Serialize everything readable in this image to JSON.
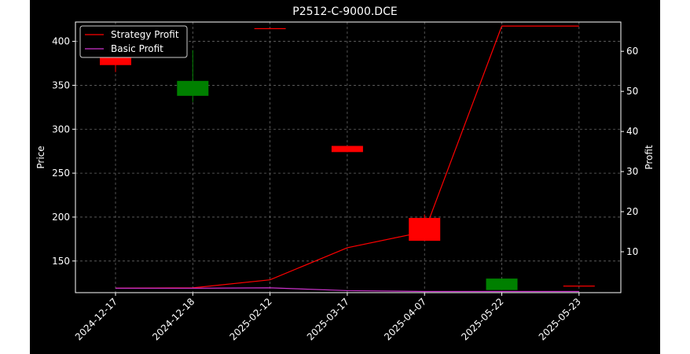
{
  "chart_data": {
    "type": "candlestick",
    "title": "P2512-C-9000.DCE",
    "xlabel": "",
    "ylabel_left": "Price",
    "ylabel_right": "Profit",
    "categories": [
      "2024-12-17",
      "2024-12-18",
      "2025-02-12",
      "2025-03-17",
      "2025-04-07",
      "2025-05-22",
      "2025-05-23"
    ],
    "candles": [
      {
        "date": "2024-12-17",
        "open": 383,
        "high": 383,
        "low": 365,
        "close": 373,
        "color": "#ff0000"
      },
      {
        "date": "2024-12-18",
        "open": 338,
        "high": 390,
        "low": 331,
        "close": 355,
        "color": "#008000"
      },
      {
        "date": "2025-02-12",
        "open": 415,
        "high": 415,
        "low": 415,
        "close": 415,
        "color": "#ff0000"
      },
      {
        "date": "2025-03-17",
        "open": 281,
        "high": 281,
        "low": 274,
        "close": 274,
        "color": "#ff0000"
      },
      {
        "date": "2025-04-07",
        "open": 199,
        "high": 203,
        "low": 173,
        "close": 173,
        "color": "#ff0000"
      },
      {
        "date": "2025-05-22",
        "open": 117,
        "high": 130,
        "low": 117,
        "close": 130,
        "color": "#008000"
      },
      {
        "date": "2025-05-23",
        "open": 122,
        "high": 122,
        "low": 122,
        "close": 122,
        "color": "#ff0000"
      }
    ],
    "series": [
      {
        "name": "Strategy Profit",
        "color": "#ff0000",
        "axis": "right",
        "values": [
          0.9,
          1.0,
          3.0,
          11.0,
          15.0,
          66.3,
          66.3
        ]
      },
      {
        "name": "Basic Profit",
        "color": "#cc33cc",
        "axis": "right",
        "values": [
          0.9,
          0.9,
          1.0,
          0.3,
          0.1,
          0.1,
          0.1
        ]
      }
    ],
    "yleft": {
      "lim": [
        114,
        422
      ],
      "ticks": [
        150,
        200,
        250,
        300,
        350,
        400
      ]
    },
    "yright": {
      "lim": [
        -0.2,
        67.3
      ],
      "ticks": [
        10,
        20,
        30,
        40,
        50,
        60
      ]
    },
    "grid": true,
    "legend_position": "top-left",
    "colors": {
      "page": "#ffffff",
      "figure": "#000000",
      "axes": "#000000",
      "grid": "#666666",
      "text": "#ffffff"
    }
  }
}
